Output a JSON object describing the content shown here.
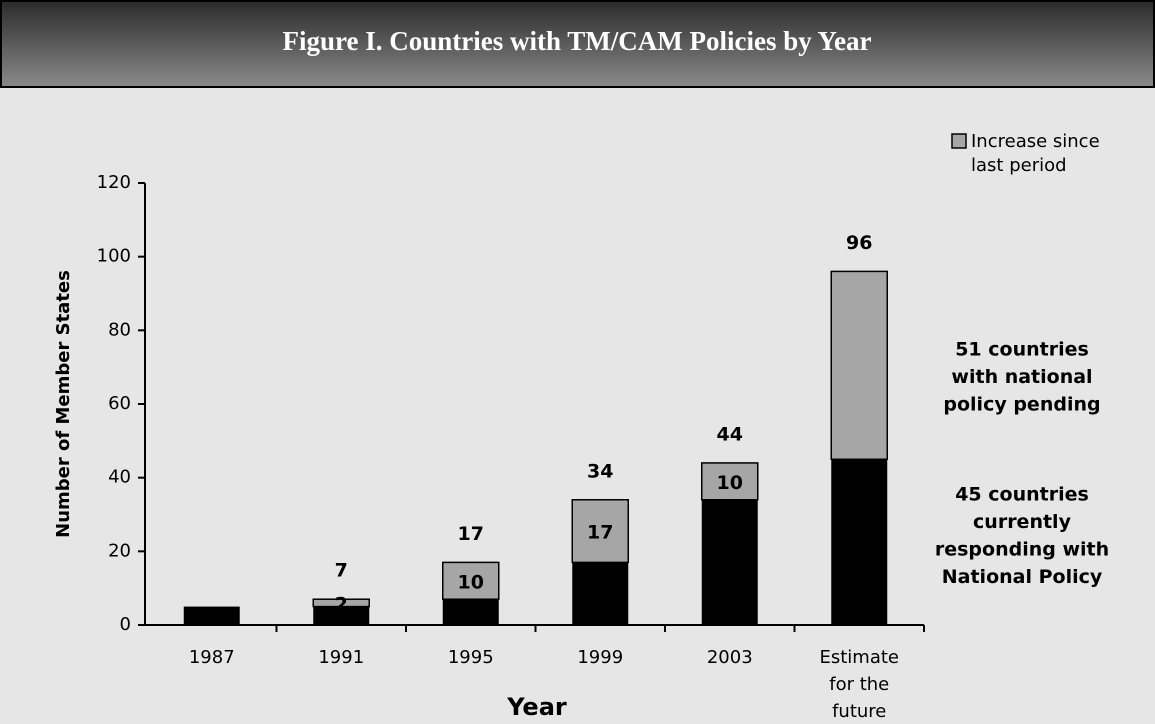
{
  "chart_data": {
    "type": "stacked_bar",
    "title": "Figure I. Countries with TM/CAM Policies by Year",
    "xlabel": "Year",
    "ylabel": "Number of Member States",
    "categories": [
      "1987",
      "1991",
      "1995",
      "1999",
      "2003",
      "Estimate for the future"
    ],
    "series": [
      {
        "color": "#000000",
        "values": [
          5,
          5,
          7,
          17,
          34,
          45
        ]
      },
      {
        "name": "Increase since last period",
        "color": "#a6a6a6",
        "values": [
          null,
          2,
          10,
          17,
          10,
          51
        ],
        "value_labels": [
          null,
          "2",
          "10",
          "17",
          "10",
          null
        ]
      }
    ],
    "totals": [
      null,
      7,
      17,
      34,
      44,
      96
    ],
    "ylim": [
      0,
      120
    ],
    "yticks": [
      0,
      20,
      40,
      60,
      80,
      100,
      120
    ],
    "legend": "top-right",
    "annotations": [
      [
        "51 countries",
        "with national",
        "policy pending"
      ],
      [
        "45 countries",
        "currently",
        "responding with",
        "National Policy"
      ]
    ]
  }
}
